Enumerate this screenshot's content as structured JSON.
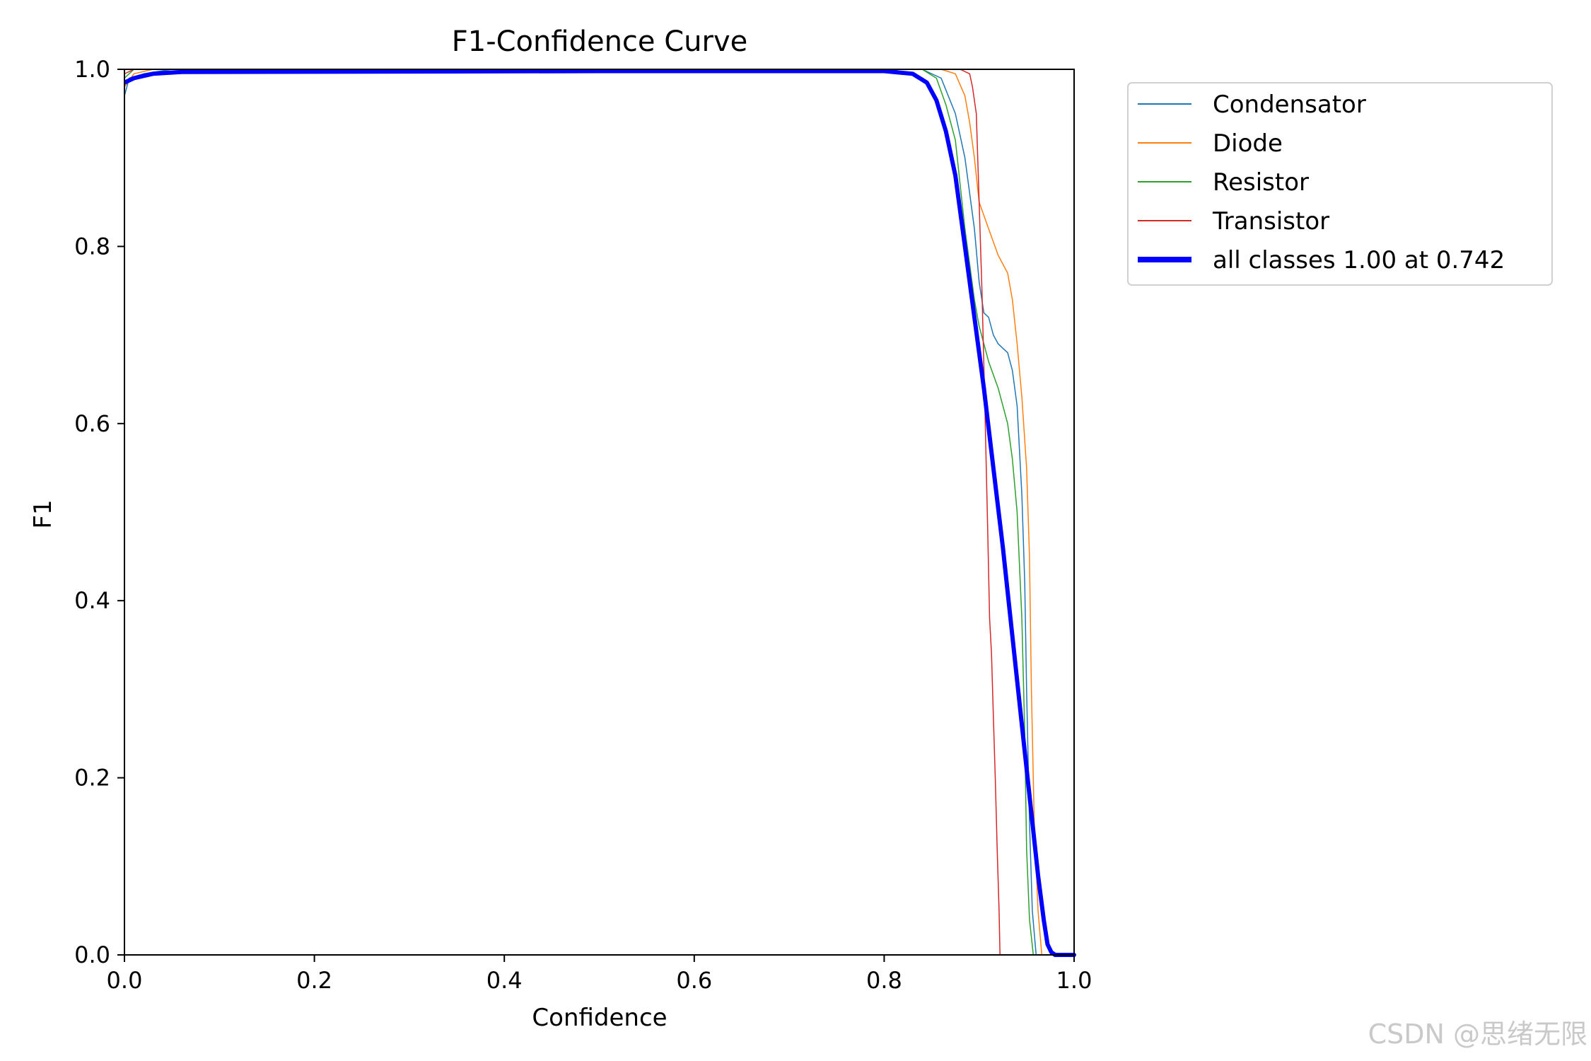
{
  "chart_data": {
    "type": "line",
    "title": "F1-Confidence Curve",
    "xlabel": "Confidence",
    "ylabel": "F1",
    "xlim": [
      0,
      1
    ],
    "ylim": [
      0,
      1
    ],
    "x_ticks": [
      "0.0",
      "0.2",
      "0.4",
      "0.6",
      "0.8",
      "1.0"
    ],
    "y_ticks": [
      "0.0",
      "0.2",
      "0.4",
      "0.6",
      "0.8",
      "1.0"
    ],
    "grid": false,
    "legend_position": "outside-top-right",
    "series": [
      {
        "name": "Condensator",
        "color": "#1f77b4",
        "width": 1.5,
        "points": [
          [
            0.0,
            0.97
          ],
          [
            0.005,
            0.99
          ],
          [
            0.02,
            0.995
          ],
          [
            0.05,
            1.0
          ],
          [
            0.5,
            1.0
          ],
          [
            0.8,
            1.0
          ],
          [
            0.84,
            1.0
          ],
          [
            0.86,
            0.99
          ],
          [
            0.875,
            0.95
          ],
          [
            0.885,
            0.9
          ],
          [
            0.895,
            0.82
          ],
          [
            0.9,
            0.76
          ],
          [
            0.905,
            0.725
          ],
          [
            0.91,
            0.72
          ],
          [
            0.915,
            0.7
          ],
          [
            0.92,
            0.69
          ],
          [
            0.925,
            0.685
          ],
          [
            0.93,
            0.68
          ],
          [
            0.935,
            0.66
          ],
          [
            0.94,
            0.62
          ],
          [
            0.945,
            0.52
          ],
          [
            0.948,
            0.42
          ],
          [
            0.95,
            0.3
          ],
          [
            0.953,
            0.15
          ],
          [
            0.956,
            0.05
          ],
          [
            0.96,
            0.0
          ],
          [
            1.0,
            0.0
          ]
        ]
      },
      {
        "name": "Diode",
        "color": "#ff7f0e",
        "width": 1.5,
        "points": [
          [
            0.0,
            0.98
          ],
          [
            0.01,
            0.995
          ],
          [
            0.03,
            1.0
          ],
          [
            0.5,
            1.0
          ],
          [
            0.86,
            1.0
          ],
          [
            0.875,
            0.995
          ],
          [
            0.885,
            0.97
          ],
          [
            0.89,
            0.94
          ],
          [
            0.895,
            0.9
          ],
          [
            0.9,
            0.85
          ],
          [
            0.91,
            0.82
          ],
          [
            0.92,
            0.79
          ],
          [
            0.93,
            0.77
          ],
          [
            0.935,
            0.74
          ],
          [
            0.94,
            0.69
          ],
          [
            0.945,
            0.63
          ],
          [
            0.95,
            0.55
          ],
          [
            0.953,
            0.45
          ],
          [
            0.955,
            0.3
          ],
          [
            0.958,
            0.15
          ],
          [
            0.962,
            0.05
          ],
          [
            0.966,
            0.0
          ],
          [
            1.0,
            0.0
          ]
        ]
      },
      {
        "name": "Resistor",
        "color": "#2ca02c",
        "width": 1.5,
        "points": [
          [
            0.0,
            0.99
          ],
          [
            0.01,
            1.0
          ],
          [
            0.5,
            1.0
          ],
          [
            0.84,
            1.0
          ],
          [
            0.855,
            0.99
          ],
          [
            0.865,
            0.96
          ],
          [
            0.875,
            0.92
          ],
          [
            0.88,
            0.87
          ],
          [
            0.885,
            0.82
          ],
          [
            0.89,
            0.78
          ],
          [
            0.895,
            0.74
          ],
          [
            0.9,
            0.71
          ],
          [
            0.91,
            0.67
          ],
          [
            0.92,
            0.64
          ],
          [
            0.925,
            0.62
          ],
          [
            0.93,
            0.6
          ],
          [
            0.935,
            0.56
          ],
          [
            0.94,
            0.5
          ],
          [
            0.945,
            0.38
          ],
          [
            0.948,
            0.25
          ],
          [
            0.95,
            0.12
          ],
          [
            0.953,
            0.04
          ],
          [
            0.957,
            0.0
          ],
          [
            1.0,
            0.0
          ]
        ]
      },
      {
        "name": "Transistor",
        "color": "#d62728",
        "width": 1.5,
        "points": [
          [
            0.0,
            0.995
          ],
          [
            0.01,
            1.0
          ],
          [
            0.5,
            1.0
          ],
          [
            0.88,
            1.0
          ],
          [
            0.89,
            0.995
          ],
          [
            0.893,
            0.98
          ],
          [
            0.897,
            0.95
          ],
          [
            0.9,
            0.85
          ],
          [
            0.903,
            0.75
          ],
          [
            0.906,
            0.62
          ],
          [
            0.909,
            0.48
          ],
          [
            0.911,
            0.38
          ],
          [
            0.913,
            0.34
          ],
          [
            0.915,
            0.27
          ],
          [
            0.917,
            0.2
          ],
          [
            0.919,
            0.12
          ],
          [
            0.921,
            0.05
          ],
          [
            0.922,
            0.0
          ],
          [
            1.0,
            0.0
          ]
        ]
      },
      {
        "name": "all classes 1.00 at 0.742",
        "color": "#0000ff",
        "width": 6,
        "points": [
          [
            0.0,
            0.985
          ],
          [
            0.01,
            0.99
          ],
          [
            0.03,
            0.995
          ],
          [
            0.06,
            0.997
          ],
          [
            0.5,
            0.998
          ],
          [
            0.8,
            0.998
          ],
          [
            0.83,
            0.995
          ],
          [
            0.845,
            0.985
          ],
          [
            0.855,
            0.965
          ],
          [
            0.865,
            0.93
          ],
          [
            0.875,
            0.88
          ],
          [
            0.885,
            0.8
          ],
          [
            0.895,
            0.72
          ],
          [
            0.905,
            0.64
          ],
          [
            0.915,
            0.55
          ],
          [
            0.925,
            0.46
          ],
          [
            0.935,
            0.36
          ],
          [
            0.945,
            0.26
          ],
          [
            0.955,
            0.16
          ],
          [
            0.962,
            0.09
          ],
          [
            0.968,
            0.04
          ],
          [
            0.972,
            0.012
          ],
          [
            0.976,
            0.003
          ],
          [
            0.98,
            0.0
          ],
          [
            1.0,
            0.0
          ]
        ]
      }
    ]
  },
  "watermark": "CSDN @思绪无限"
}
